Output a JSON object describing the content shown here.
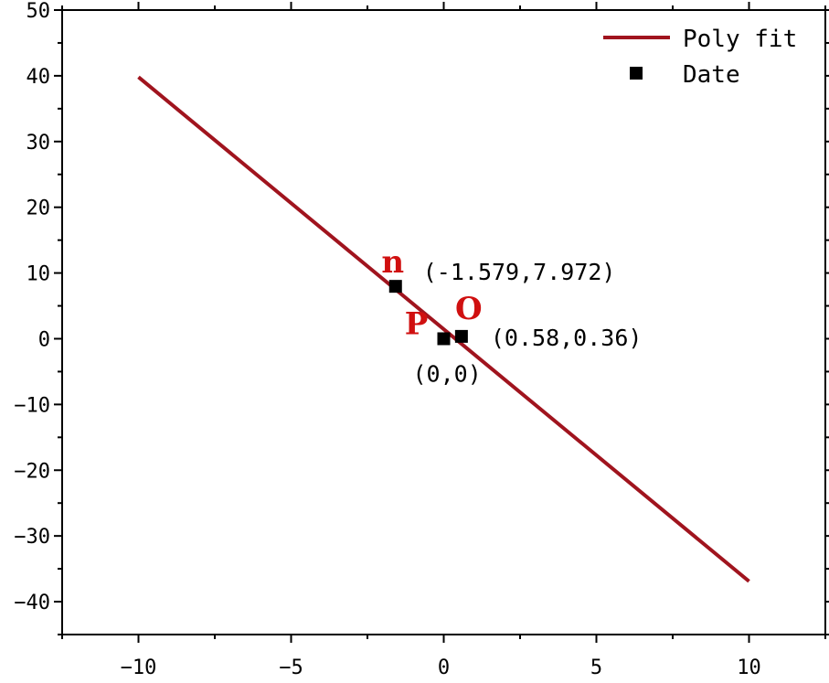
{
  "chart_data": {
    "type": "scatter",
    "title": "",
    "xlabel": "",
    "ylabel": "",
    "xlim": [
      -12.5,
      12.5
    ],
    "ylim": [
      -45,
      50
    ],
    "xticks": [
      -10,
      -5,
      0,
      5,
      10
    ],
    "yticks": [
      -40,
      -30,
      -20,
      -10,
      0,
      10,
      20,
      30,
      40,
      50
    ],
    "grid": false,
    "legend_position": "top-right",
    "series": [
      {
        "name": "Poly fit",
        "kind": "line",
        "color": "#A0141E",
        "x": [
          -10,
          10
        ],
        "y": [
          39.8,
          -36.9
        ]
      },
      {
        "name": "Date",
        "kind": "scatter",
        "color": "#000000",
        "marker": "square",
        "points": [
          {
            "x": -1.579,
            "y": 7.972,
            "label": "(-1.579,7.972)",
            "letter": "n"
          },
          {
            "x": 0,
            "y": 0,
            "label": "(0,0)",
            "letter": "P"
          },
          {
            "x": 0.58,
            "y": 0.36,
            "label": "(0.58,0.36)",
            "letter": "O"
          }
        ]
      }
    ],
    "letter_color": "#D01010"
  }
}
